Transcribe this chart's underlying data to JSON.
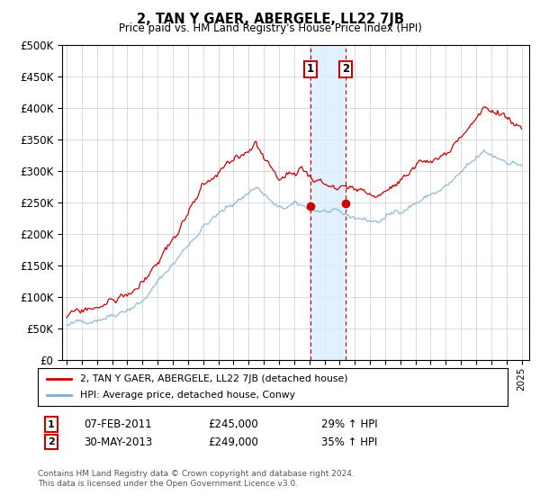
{
  "title": "2, TAN Y GAER, ABERGELE, LL22 7JB",
  "subtitle": "Price paid vs. HM Land Registry's House Price Index (HPI)",
  "yticks": [
    0,
    50000,
    100000,
    150000,
    200000,
    250000,
    300000,
    350000,
    400000,
    450000,
    500000
  ],
  "xlim_start": 1994.7,
  "xlim_end": 2025.5,
  "ylim": [
    0,
    500000
  ],
  "sale1_date": 2011.09,
  "sale1_price": 245000,
  "sale1_label": "1",
  "sale2_date": 2013.41,
  "sale2_price": 249000,
  "sale2_label": "2",
  "red_line_color": "#cc0000",
  "blue_line_color": "#7bafd4",
  "shade_color": "#ddeeff",
  "marker_color": "#cc0000",
  "vline_color": "#cc0000",
  "legend_label_red": "2, TAN Y GAER, ABERGELE, LL22 7JB (detached house)",
  "legend_label_blue": "HPI: Average price, detached house, Conwy",
  "footnote1": "Contains HM Land Registry data © Crown copyright and database right 2024.",
  "footnote2": "This data is licensed under the Open Government Licence v3.0.",
  "box_color": "#cc0000",
  "background_color": "#ffffff",
  "grid_color": "#cccccc"
}
